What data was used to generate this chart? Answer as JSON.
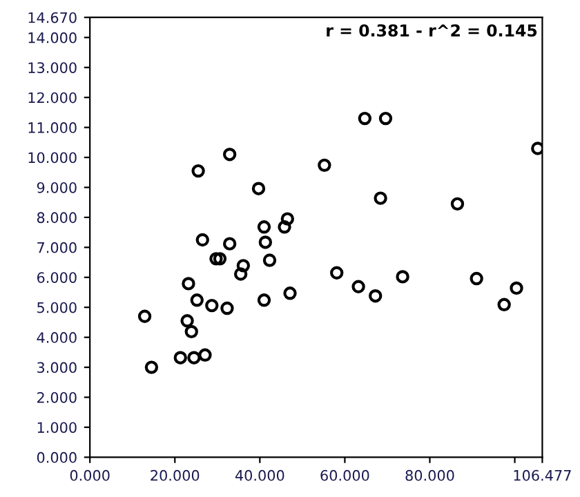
{
  "chart_data": {
    "type": "scatter",
    "marker": "circle",
    "grid": false,
    "annotations": [
      "r = 0.381 - r^2 = 0.145"
    ],
    "xlim": [
      0,
      106.477
    ],
    "ylim": [
      0,
      14.67
    ],
    "xticks": [
      {
        "value": 0,
        "label": "0.000"
      },
      {
        "value": 20,
        "label": "20.000"
      },
      {
        "value": 40,
        "label": "40.000"
      },
      {
        "value": 60,
        "label": "60.000"
      },
      {
        "value": 80,
        "label": "80.000"
      },
      {
        "value": 100,
        "label": null
      },
      {
        "value": 106.477,
        "label": "106.477"
      }
    ],
    "yticks": [
      {
        "value": 0,
        "label": "0.000"
      },
      {
        "value": 1,
        "label": "1.000"
      },
      {
        "value": 2,
        "label": "2.000"
      },
      {
        "value": 3,
        "label": "3.000"
      },
      {
        "value": 4,
        "label": "4.000"
      },
      {
        "value": 5,
        "label": "5.000"
      },
      {
        "value": 6,
        "label": "6.000"
      },
      {
        "value": 7,
        "label": "7.000"
      },
      {
        "value": 8,
        "label": "8.000"
      },
      {
        "value": 9,
        "label": "9.000"
      },
      {
        "value": 10,
        "label": "10.000"
      },
      {
        "value": 11,
        "label": "11.000"
      },
      {
        "value": 12,
        "label": "12.000"
      },
      {
        "value": 13,
        "label": "13.000"
      },
      {
        "value": 14,
        "label": "14.000"
      },
      {
        "value": 14.67,
        "label": "14.670"
      }
    ],
    "series": [
      {
        "color": "#000000",
        "x": [
          12.9,
          14.5,
          21.3,
          24.5,
          27.1,
          22.9,
          23.9,
          23.2,
          25.2,
          28.7,
          32.3,
          26.5,
          32.9,
          29.7,
          30.6,
          35.5,
          36.1,
          41.3,
          42.3,
          41.0,
          47.1,
          32.9,
          25.5,
          39.7,
          41.0,
          45.8,
          46.5,
          55.2,
          64.7,
          69.6,
          68.4,
          86.5,
          105.4,
          58.1,
          63.2,
          67.2,
          73.6,
          91.0,
          97.5,
          100.4
        ],
        "values": [
          4.7,
          3.0,
          3.32,
          3.32,
          3.41,
          4.55,
          4.19,
          5.79,
          5.24,
          5.06,
          4.97,
          7.25,
          7.12,
          6.62,
          6.62,
          6.11,
          6.39,
          7.17,
          6.57,
          5.24,
          5.47,
          10.1,
          9.55,
          8.96,
          7.68,
          7.68,
          7.95,
          9.74,
          11.3,
          11.3,
          8.64,
          8.45,
          10.3,
          6.15,
          5.69,
          5.38,
          6.02,
          5.96,
          5.09,
          5.64
        ]
      }
    ]
  }
}
